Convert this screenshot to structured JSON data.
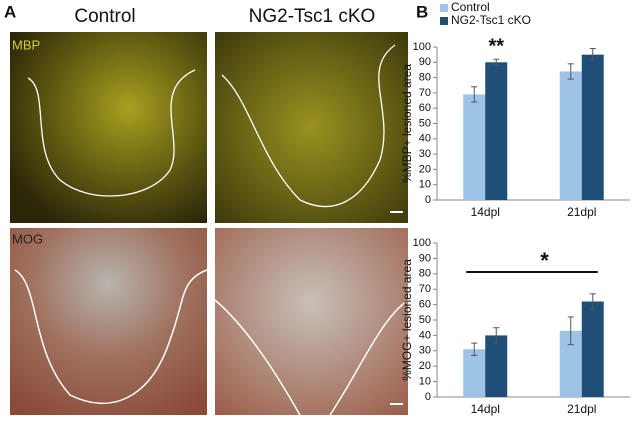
{
  "panel_a": {
    "label": "A",
    "columns": [
      "Control",
      "NG2-Tsc1 cKO"
    ],
    "rows": [
      "MBP",
      "MOG"
    ]
  },
  "panel_b": {
    "label": "B"
  },
  "chart_data": [
    {
      "type": "bar",
      "ylabel": "%MBP+ lesioned area",
      "categories": [
        "14dpl",
        "21dpl"
      ],
      "series": [
        {
          "name": "Control",
          "color": "#9dc3e6",
          "values": [
            69,
            84
          ],
          "errors": [
            5,
            5
          ]
        },
        {
          "name": "NG2-Tsc1 cKO",
          "color": "#1f4e79",
          "values": [
            90,
            95
          ],
          "errors": [
            2,
            4
          ]
        }
      ],
      "ylim": [
        0,
        100
      ],
      "yticks": [
        0,
        10,
        20,
        30,
        40,
        50,
        60,
        70,
        80,
        90,
        100
      ],
      "grid": false,
      "annotations": [
        "**"
      ],
      "legend": "top"
    },
    {
      "type": "bar",
      "ylabel": "%MOG+ lesioned area",
      "categories": [
        "14dpl",
        "21dpl"
      ],
      "series": [
        {
          "name": "Control",
          "color": "#9dc3e6",
          "values": [
            31,
            43
          ],
          "errors": [
            4,
            9
          ]
        },
        {
          "name": "NG2-Tsc1 cKO",
          "color": "#1f4e79",
          "values": [
            40,
            62
          ],
          "errors": [
            5,
            5
          ]
        }
      ],
      "ylim": [
        0,
        100
      ],
      "yticks": [
        0,
        10,
        20,
        30,
        40,
        50,
        60,
        70,
        80,
        90,
        100
      ],
      "grid": false,
      "annotations": [
        "*"
      ]
    }
  ]
}
